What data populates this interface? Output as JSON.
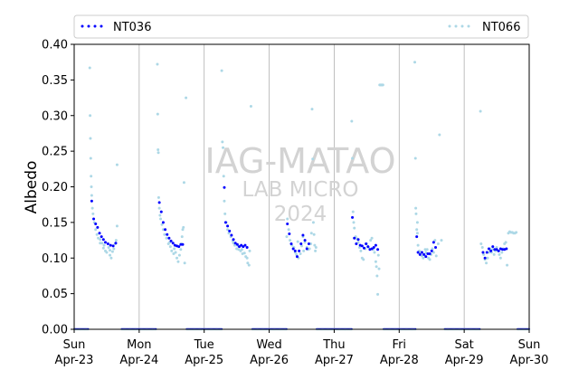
{
  "chart_data": {
    "type": "scatter",
    "ylabel": "Albedo",
    "xlabel": "",
    "ylim": [
      0,
      0.4
    ],
    "yticks": [
      "0.00",
      "0.05",
      "0.10",
      "0.15",
      "0.20",
      "0.25",
      "0.30",
      "0.35",
      "0.40"
    ],
    "xticks": [
      {
        "day": "Sun",
        "date": "Apr-23"
      },
      {
        "day": "Mon",
        "date": "Apr-24"
      },
      {
        "day": "Tue",
        "date": "Apr-25"
      },
      {
        "day": "Wed",
        "date": "Apr-26"
      },
      {
        "day": "Thu",
        "date": "Apr-27"
      },
      {
        "day": "Fri",
        "date": "Apr-28"
      },
      {
        "day": "Sat",
        "date": "Apr-29"
      },
      {
        "day": "Sun",
        "date": "Apr-30"
      }
    ],
    "grid": "vertical",
    "legend_position": "top",
    "watermark": [
      "IAG-MATAO",
      "LAB MICRO",
      "2024"
    ],
    "series": [
      {
        "name": "NT036",
        "color": "#0000ff"
      },
      {
        "name": "NT066",
        "color": "#add8e6"
      }
    ],
    "days": [
      {
        "nt036": [
          [
            0.27,
            0.18
          ],
          [
            0.3,
            0.155
          ],
          [
            0.33,
            0.148
          ],
          [
            0.36,
            0.143
          ],
          [
            0.39,
            0.135
          ],
          [
            0.42,
            0.13
          ],
          [
            0.45,
            0.126
          ],
          [
            0.48,
            0.122
          ],
          [
            0.52,
            0.12
          ],
          [
            0.56,
            0.118
          ],
          [
            0.6,
            0.117
          ],
          [
            0.64,
            0.121
          ]
        ],
        "nt066": [
          [
            0.24,
            0.367
          ],
          [
            0.245,
            0.3
          ],
          [
            0.25,
            0.268
          ],
          [
            0.255,
            0.24
          ],
          [
            0.26,
            0.215
          ],
          [
            0.265,
            0.2
          ],
          [
            0.27,
            0.188
          ],
          [
            0.28,
            0.17
          ],
          [
            0.29,
            0.162
          ],
          [
            0.31,
            0.15
          ],
          [
            0.33,
            0.14
          ],
          [
            0.35,
            0.133
          ],
          [
            0.37,
            0.128
          ],
          [
            0.4,
            0.126
          ],
          [
            0.43,
            0.121
          ],
          [
            0.45,
            0.114
          ],
          [
            0.48,
            0.11
          ],
          [
            0.5,
            0.108
          ],
          [
            0.53,
            0.115
          ],
          [
            0.55,
            0.104
          ],
          [
            0.57,
            0.1
          ],
          [
            0.59,
            0.109
          ],
          [
            0.61,
            0.113
          ],
          [
            0.63,
            0.12
          ],
          [
            0.645,
            0.125
          ],
          [
            0.66,
            0.231
          ],
          [
            0.66,
            0.145
          ],
          [
            0.4,
            0.121
          ],
          [
            0.46,
            0.118
          ],
          [
            0.55,
            0.111
          ]
        ]
      },
      {
        "nt036": [
          [
            0.31,
            0.178
          ],
          [
            0.34,
            0.165
          ],
          [
            0.37,
            0.15
          ],
          [
            0.4,
            0.14
          ],
          [
            0.43,
            0.133
          ],
          [
            0.46,
            0.128
          ],
          [
            0.49,
            0.124
          ],
          [
            0.52,
            0.121
          ],
          [
            0.55,
            0.118
          ],
          [
            0.58,
            0.117
          ],
          [
            0.61,
            0.116
          ],
          [
            0.64,
            0.119
          ],
          [
            0.67,
            0.119
          ]
        ],
        "nt066": [
          [
            0.28,
            0.372
          ],
          [
            0.285,
            0.302
          ],
          [
            0.29,
            0.252
          ],
          [
            0.295,
            0.248
          ],
          [
            0.3,
            0.185
          ],
          [
            0.31,
            0.17
          ],
          [
            0.32,
            0.16
          ],
          [
            0.33,
            0.155
          ],
          [
            0.35,
            0.147
          ],
          [
            0.37,
            0.14
          ],
          [
            0.39,
            0.133
          ],
          [
            0.42,
            0.128
          ],
          [
            0.45,
            0.12
          ],
          [
            0.48,
            0.116
          ],
          [
            0.5,
            0.11
          ],
          [
            0.53,
            0.106
          ],
          [
            0.56,
            0.108
          ],
          [
            0.58,
            0.1
          ],
          [
            0.6,
            0.095
          ],
          [
            0.62,
            0.104
          ],
          [
            0.64,
            0.112
          ],
          [
            0.65,
            0.12
          ],
          [
            0.66,
            0.13
          ],
          [
            0.67,
            0.14
          ],
          [
            0.68,
            0.143
          ],
          [
            0.69,
            0.206
          ],
          [
            0.7,
            0.093
          ],
          [
            0.72,
            0.325
          ],
          [
            0.47,
            0.122
          ],
          [
            0.54,
            0.113
          ]
        ]
      },
      {
        "nt036": [
          [
            0.31,
            0.199
          ],
          [
            0.33,
            0.15
          ],
          [
            0.36,
            0.145
          ],
          [
            0.39,
            0.138
          ],
          [
            0.42,
            0.132
          ],
          [
            0.45,
            0.126
          ],
          [
            0.48,
            0.121
          ],
          [
            0.51,
            0.119
          ],
          [
            0.54,
            0.116
          ],
          [
            0.57,
            0.118
          ],
          [
            0.6,
            0.116
          ],
          [
            0.63,
            0.118
          ],
          [
            0.66,
            0.115
          ]
        ],
        "nt066": [
          [
            0.27,
            0.363
          ],
          [
            0.28,
            0.263
          ],
          [
            0.29,
            0.255
          ],
          [
            0.3,
            0.215
          ],
          [
            0.31,
            0.18
          ],
          [
            0.32,
            0.162
          ],
          [
            0.34,
            0.15
          ],
          [
            0.36,
            0.14
          ],
          [
            0.38,
            0.135
          ],
          [
            0.41,
            0.13
          ],
          [
            0.44,
            0.124
          ],
          [
            0.47,
            0.118
          ],
          [
            0.5,
            0.113
          ],
          [
            0.53,
            0.112
          ],
          [
            0.56,
            0.11
          ],
          [
            0.59,
            0.106
          ],
          [
            0.62,
            0.107
          ],
          [
            0.64,
            0.102
          ],
          [
            0.66,
            0.1
          ],
          [
            0.67,
            0.093
          ],
          [
            0.69,
            0.09
          ],
          [
            0.7,
            0.11
          ],
          [
            0.72,
            0.313
          ],
          [
            0.45,
            0.121
          ],
          [
            0.52,
            0.117
          ],
          [
            0.58,
            0.112
          ]
        ]
      },
      {
        "nt036": [
          [
            0.28,
            0.148
          ],
          [
            0.31,
            0.134
          ],
          [
            0.34,
            0.12
          ],
          [
            0.37,
            0.113
          ],
          [
            0.4,
            0.11
          ],
          [
            0.43,
            0.102
          ],
          [
            0.46,
            0.11
          ],
          [
            0.49,
            0.12
          ],
          [
            0.52,
            0.132
          ],
          [
            0.55,
            0.125
          ],
          [
            0.58,
            0.113
          ],
          [
            0.61,
            0.12
          ]
        ],
        "nt066": [
          [
            0.27,
            0.13
          ],
          [
            0.28,
            0.155
          ],
          [
            0.3,
            0.14
          ],
          [
            0.32,
            0.125
          ],
          [
            0.35,
            0.118
          ],
          [
            0.38,
            0.115
          ],
          [
            0.4,
            0.108
          ],
          [
            0.42,
            0.105
          ],
          [
            0.45,
            0.1
          ],
          [
            0.48,
            0.106
          ],
          [
            0.5,
            0.117
          ],
          [
            0.52,
            0.13
          ],
          [
            0.55,
            0.122
          ],
          [
            0.58,
            0.115
          ],
          [
            0.6,
            0.112
          ],
          [
            0.62,
            0.113
          ],
          [
            0.64,
            0.12
          ],
          [
            0.65,
            0.135
          ],
          [
            0.66,
            0.309
          ],
          [
            0.67,
            0.239
          ],
          [
            0.68,
            0.15
          ],
          [
            0.69,
            0.133
          ],
          [
            0.7,
            0.118
          ],
          [
            0.71,
            0.11
          ],
          [
            0.72,
            0.115
          ],
          [
            0.44,
            0.123
          ],
          [
            0.53,
            0.11
          ]
        ]
      },
      {
        "nt036": [
          [
            0.28,
            0.157
          ],
          [
            0.31,
            0.128
          ],
          [
            0.34,
            0.12
          ],
          [
            0.37,
            0.126
          ],
          [
            0.4,
            0.118
          ],
          [
            0.43,
            0.117
          ],
          [
            0.46,
            0.114
          ],
          [
            0.49,
            0.12
          ],
          [
            0.52,
            0.116
          ],
          [
            0.55,
            0.112
          ],
          [
            0.58,
            0.113
          ],
          [
            0.61,
            0.115
          ],
          [
            0.64,
            0.118
          ],
          [
            0.67,
            0.112
          ]
        ],
        "nt066": [
          [
            0.27,
            0.292
          ],
          [
            0.28,
            0.24
          ],
          [
            0.29,
            0.165
          ],
          [
            0.3,
            0.15
          ],
          [
            0.31,
            0.142
          ],
          [
            0.33,
            0.13
          ],
          [
            0.35,
            0.127
          ],
          [
            0.37,
            0.122
          ],
          [
            0.39,
            0.115
          ],
          [
            0.41,
            0.11
          ],
          [
            0.43,
            0.1
          ],
          [
            0.45,
            0.098
          ],
          [
            0.48,
            0.113
          ],
          [
            0.5,
            0.12
          ],
          [
            0.53,
            0.115
          ],
          [
            0.56,
            0.125
          ],
          [
            0.58,
            0.128
          ],
          [
            0.6,
            0.112
          ],
          [
            0.62,
            0.108
          ],
          [
            0.64,
            0.095
          ],
          [
            0.65,
            0.088
          ],
          [
            0.66,
            0.075
          ],
          [
            0.67,
            0.049
          ],
          [
            0.68,
            0.104
          ],
          [
            0.69,
            0.085
          ],
          [
            0.7,
            0.343
          ],
          [
            0.71,
            0.343
          ],
          [
            0.72,
            0.343
          ],
          [
            0.73,
            0.343
          ],
          [
            0.74,
            0.343
          ],
          [
            0.75,
            0.343
          ]
        ]
      },
      {
        "nt036": [
          [
            0.27,
            0.13
          ],
          [
            0.29,
            0.108
          ],
          [
            0.32,
            0.105
          ],
          [
            0.35,
            0.108
          ],
          [
            0.38,
            0.105
          ],
          [
            0.41,
            0.102
          ],
          [
            0.44,
            0.106
          ],
          [
            0.47,
            0.106
          ],
          [
            0.5,
            0.11
          ],
          [
            0.53,
            0.122
          ],
          [
            0.56,
            0.115
          ]
        ],
        "nt066": [
          [
            0.24,
            0.375
          ],
          [
            0.25,
            0.24
          ],
          [
            0.255,
            0.17
          ],
          [
            0.26,
            0.162
          ],
          [
            0.27,
            0.14
          ],
          [
            0.28,
            0.135
          ],
          [
            0.29,
            0.118
          ],
          [
            0.31,
            0.11
          ],
          [
            0.33,
            0.108
          ],
          [
            0.35,
            0.103
          ],
          [
            0.37,
            0.1
          ],
          [
            0.39,
            0.105
          ],
          [
            0.41,
            0.108
          ],
          [
            0.43,
            0.112
          ],
          [
            0.45,
            0.1
          ],
          [
            0.47,
            0.098
          ],
          [
            0.49,
            0.105
          ],
          [
            0.51,
            0.113
          ],
          [
            0.53,
            0.108
          ],
          [
            0.55,
            0.125
          ],
          [
            0.57,
            0.103
          ],
          [
            0.6,
            0.12
          ],
          [
            0.62,
            0.273
          ],
          [
            0.65,
            0.125
          ],
          [
            0.28,
            0.15
          ],
          [
            0.4,
            0.112
          ]
        ]
      },
      {
        "nt036": [
          [
            0.29,
            0.108
          ],
          [
            0.32,
            0.1
          ],
          [
            0.35,
            0.108
          ],
          [
            0.38,
            0.113
          ],
          [
            0.41,
            0.11
          ],
          [
            0.44,
            0.116
          ],
          [
            0.47,
            0.112
          ],
          [
            0.5,
            0.112
          ],
          [
            0.53,
            0.11
          ],
          [
            0.56,
            0.113
          ],
          [
            0.59,
            0.112
          ],
          [
            0.62,
            0.112
          ],
          [
            0.65,
            0.113
          ]
        ],
        "nt066": [
          [
            0.25,
            0.306
          ],
          [
            0.26,
            0.12
          ],
          [
            0.28,
            0.115
          ],
          [
            0.3,
            0.105
          ],
          [
            0.32,
            0.098
          ],
          [
            0.34,
            0.093
          ],
          [
            0.36,
            0.1
          ],
          [
            0.38,
            0.108
          ],
          [
            0.4,
            0.113
          ],
          [
            0.42,
            0.108
          ],
          [
            0.44,
            0.112
          ],
          [
            0.46,
            0.105
          ],
          [
            0.48,
            0.11
          ],
          [
            0.5,
            0.115
          ],
          [
            0.52,
            0.11
          ],
          [
            0.54,
            0.105
          ],
          [
            0.56,
            0.1
          ],
          [
            0.58,
            0.108
          ],
          [
            0.6,
            0.113
          ],
          [
            0.62,
            0.12
          ],
          [
            0.64,
            0.122
          ],
          [
            0.66,
            0.09
          ],
          [
            0.68,
            0.135
          ],
          [
            0.7,
            0.137
          ],
          [
            0.72,
            0.136
          ],
          [
            0.74,
            0.136
          ],
          [
            0.76,
            0.135
          ],
          [
            0.78,
            0.135
          ],
          [
            0.8,
            0.136
          ]
        ]
      }
    ],
    "baseline_segments": [
      [
        -0.0,
        0.22
      ],
      [
        0.73,
        1.26
      ],
      [
        1.73,
        2.27
      ],
      [
        2.74,
        3.27
      ],
      [
        3.73,
        4.27
      ],
      [
        4.76,
        5.26
      ],
      [
        5.7,
        6.24
      ],
      [
        6.82,
        7.0
      ]
    ]
  }
}
